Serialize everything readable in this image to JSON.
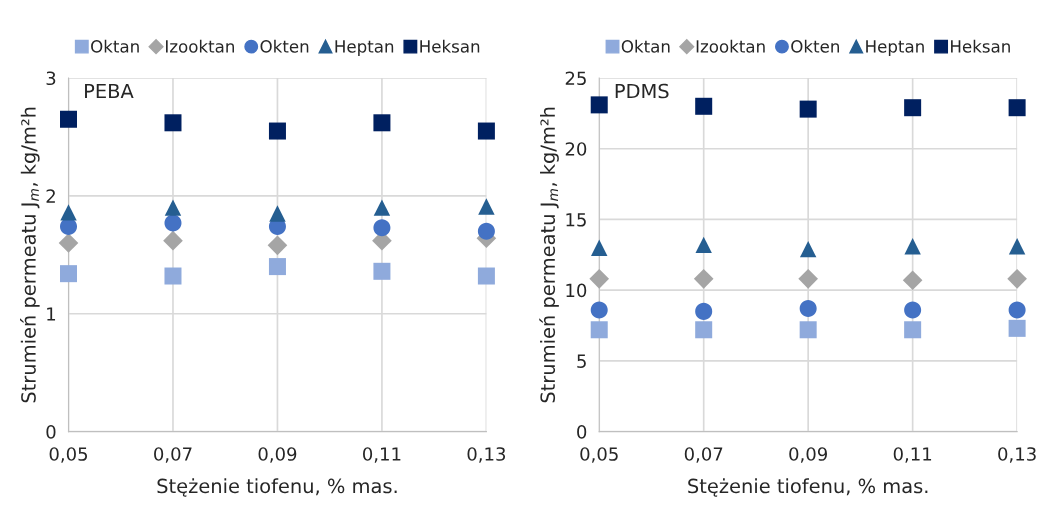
{
  "chart_data": [
    {
      "type": "scatter",
      "xlabel": "Stężenie tiofenu, % mas.",
      "ylabel": "Strumień permeatu J$_{m}$, kg/m²h",
      "annotations": [
        "PEBA"
      ],
      "x": [
        0.05,
        0.07,
        0.09,
        0.11,
        0.13
      ],
      "series": [
        {
          "name": "Oktan",
          "color": "#8faadc",
          "marker": "square",
          "values": [
            1.34,
            1.32,
            1.4,
            1.36,
            1.32
          ]
        },
        {
          "name": "Izooktan",
          "color": "#a5a5a5",
          "marker": "diamond",
          "values": [
            1.6,
            1.62,
            1.58,
            1.62,
            1.64
          ]
        },
        {
          "name": "Okten",
          "color": "#4472c4",
          "marker": "circle",
          "values": [
            1.74,
            1.77,
            1.74,
            1.73,
            1.7
          ]
        },
        {
          "name": "Heptan",
          "color": "#255e91",
          "marker": "triangle",
          "values": [
            1.86,
            1.9,
            1.85,
            1.9,
            1.91
          ]
        },
        {
          "name": "Heksan",
          "color": "#002060",
          "marker": "square",
          "values": [
            2.65,
            2.62,
            2.55,
            2.62,
            2.55
          ]
        }
      ],
      "xlim": [
        0.05,
        0.13
      ],
      "xticks": [
        {
          "value": 0.05,
          "label": "0,05"
        },
        {
          "value": 0.07,
          "label": "0,07"
        },
        {
          "value": 0.09,
          "label": "0,09"
        },
        {
          "value": 0.11,
          "label": "0,11"
        },
        {
          "value": 0.13,
          "label": "0,13"
        }
      ],
      "ylim": [
        0,
        3
      ],
      "yticks": [
        0,
        1,
        2,
        3
      ],
      "grid": true,
      "legend": "top"
    },
    {
      "type": "scatter",
      "xlabel": "Stężenie tiofenu, % mas.",
      "ylabel": "Strumień permeatu J$_{m}$, kg/m²h",
      "annotations": [
        "PDMS"
      ],
      "x": [
        0.05,
        0.07,
        0.09,
        0.11,
        0.13
      ],
      "series": [
        {
          "name": "Oktan",
          "color": "#8faadc",
          "marker": "square",
          "values": [
            7.2,
            7.2,
            7.2,
            7.2,
            7.3
          ]
        },
        {
          "name": "Izooktan",
          "color": "#a5a5a5",
          "marker": "diamond",
          "values": [
            10.8,
            10.8,
            10.8,
            10.7,
            10.8
          ]
        },
        {
          "name": "Okten",
          "color": "#4472c4",
          "marker": "circle",
          "values": [
            8.6,
            8.5,
            8.7,
            8.6,
            8.6
          ]
        },
        {
          "name": "Heptan",
          "color": "#255e91",
          "marker": "triangle",
          "values": [
            13.0,
            13.2,
            12.9,
            13.1,
            13.1
          ]
        },
        {
          "name": "Heksan",
          "color": "#002060",
          "marker": "square",
          "values": [
            23.1,
            23.0,
            22.8,
            22.9,
            22.9
          ]
        }
      ],
      "xlim": [
        0.05,
        0.13
      ],
      "xticks": [
        {
          "value": 0.05,
          "label": "0,05"
        },
        {
          "value": 0.07,
          "label": "0,07"
        },
        {
          "value": 0.09,
          "label": "0,09"
        },
        {
          "value": 0.11,
          "label": "0,11"
        },
        {
          "value": 0.13,
          "label": "0,13"
        }
      ],
      "ylim": [
        0,
        25
      ],
      "yticks": [
        0,
        5,
        10,
        15,
        20,
        25
      ],
      "grid": true,
      "legend": "top"
    }
  ]
}
